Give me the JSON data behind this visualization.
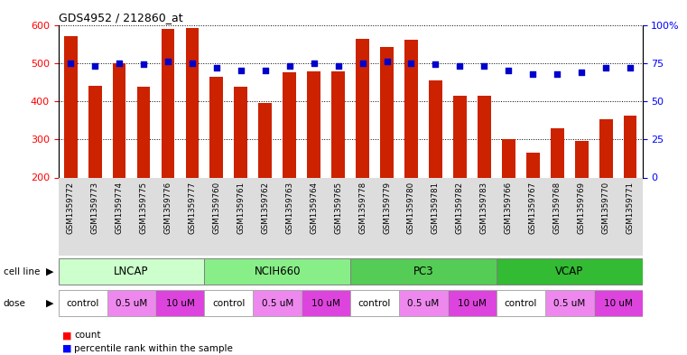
{
  "title": "GDS4952 / 212860_at",
  "samples": [
    "GSM1359772",
    "GSM1359773",
    "GSM1359774",
    "GSM1359775",
    "GSM1359776",
    "GSM1359777",
    "GSM1359760",
    "GSM1359761",
    "GSM1359762",
    "GSM1359763",
    "GSM1359764",
    "GSM1359765",
    "GSM1359778",
    "GSM1359779",
    "GSM1359780",
    "GSM1359781",
    "GSM1359782",
    "GSM1359783",
    "GSM1359766",
    "GSM1359767",
    "GSM1359768",
    "GSM1359769",
    "GSM1359770",
    "GSM1359771"
  ],
  "counts": [
    570,
    440,
    500,
    437,
    590,
    591,
    463,
    437,
    395,
    475,
    478,
    477,
    563,
    542,
    562,
    455,
    415,
    415,
    300,
    265,
    330,
    295,
    352,
    362
  ],
  "percentile_ranks": [
    75,
    73,
    75,
    74,
    76,
    75,
    72,
    70,
    70,
    73,
    75,
    73,
    75,
    76,
    75,
    74,
    73,
    73,
    70,
    68,
    68,
    69,
    72,
    72
  ],
  "cell_lines": [
    {
      "name": "LNCAP",
      "start": 0,
      "end": 6,
      "color": "#ccffcc"
    },
    {
      "name": "NCIH660",
      "start": 6,
      "end": 12,
      "color": "#88ee88"
    },
    {
      "name": "PC3",
      "start": 12,
      "end": 18,
      "color": "#55cc55"
    },
    {
      "name": "VCAP",
      "start": 18,
      "end": 24,
      "color": "#33bb33"
    }
  ],
  "doses": [
    {
      "label": "control",
      "start": 0,
      "end": 2,
      "color": "#ffffff"
    },
    {
      "label": "0.5 uM",
      "start": 2,
      "end": 4,
      "color": "#ee88ee"
    },
    {
      "label": "10 uM",
      "start": 4,
      "end": 6,
      "color": "#dd44dd"
    },
    {
      "label": "control",
      "start": 6,
      "end": 8,
      "color": "#ffffff"
    },
    {
      "label": "0.5 uM",
      "start": 8,
      "end": 10,
      "color": "#ee88ee"
    },
    {
      "label": "10 uM",
      "start": 10,
      "end": 12,
      "color": "#dd44dd"
    },
    {
      "label": "control",
      "start": 12,
      "end": 14,
      "color": "#ffffff"
    },
    {
      "label": "0.5 uM",
      "start": 14,
      "end": 16,
      "color": "#ee88ee"
    },
    {
      "label": "10 uM",
      "start": 16,
      "end": 18,
      "color": "#dd44dd"
    },
    {
      "label": "control",
      "start": 18,
      "end": 20,
      "color": "#ffffff"
    },
    {
      "label": "0.5 uM",
      "start": 20,
      "end": 22,
      "color": "#ee88ee"
    },
    {
      "label": "10 uM",
      "start": 22,
      "end": 24,
      "color": "#dd44dd"
    }
  ],
  "ylim_left": [
    200,
    600
  ],
  "ylim_right": [
    0,
    100
  ],
  "yticks_left": [
    200,
    300,
    400,
    500,
    600
  ],
  "yticks_right": [
    0,
    25,
    50,
    75,
    100
  ],
  "ytick_labels_right": [
    "0",
    "25",
    "50",
    "75",
    "100%"
  ],
  "bar_color": "#cc2200",
  "dot_color": "#0000cc",
  "background_color": "#ffffff",
  "cell_line_label": "cell line",
  "dose_label": "dose",
  "legend_count": "count",
  "legend_percentile": "percentile rank within the sample"
}
